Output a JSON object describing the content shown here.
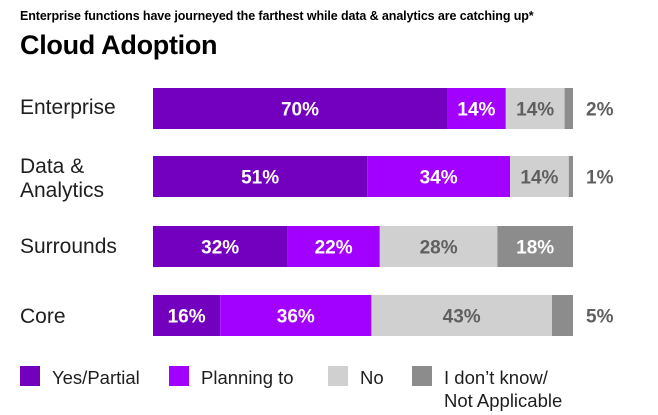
{
  "subtitle": "Enterprise functions have journeyed the farthest while data & analytics are catching up*",
  "title": "Cloud Adoption",
  "chart_data": {
    "type": "bar",
    "orientation": "horizontal",
    "stacked": true,
    "title": "Cloud Adoption",
    "subtitle": "Enterprise functions have journeyed the farthest while data & analytics are catching up*",
    "categories": [
      "Enterprise",
      "Data & Analytics",
      "Surrounds",
      "Core"
    ],
    "category_lines": [
      [
        "Enterprise"
      ],
      [
        "Data &",
        "Analytics"
      ],
      [
        "Surrounds"
      ],
      [
        "Core"
      ]
    ],
    "series": [
      {
        "name": "Yes/Partial",
        "color": "#7400bf",
        "label_color": "#ffffff",
        "values": [
          70,
          51,
          32,
          16
        ],
        "labels": [
          "70%",
          "51%",
          "32%",
          "16%"
        ]
      },
      {
        "name": "Planning to",
        "color": "#a200ff",
        "label_color": "#ffffff",
        "values": [
          14,
          34,
          22,
          36
        ],
        "labels": [
          "14%",
          "34%",
          "22%",
          "36%"
        ]
      },
      {
        "name": "No",
        "color": "#d0d0d0",
        "label_color": "#5f5f5f",
        "values": [
          14,
          14,
          28,
          43
        ],
        "labels": [
          "14%",
          "14%",
          "28%",
          "43%"
        ]
      },
      {
        "name": "I don't know/ Not Applicable",
        "color": "#8c8c8c",
        "label_color": "#ffffff",
        "values": [
          2,
          1,
          18,
          5
        ],
        "labels": [
          "2%",
          "1%",
          "18%",
          "5%"
        ]
      }
    ],
    "outside_labels": [
      "2%",
      "1%",
      null,
      "5%"
    ],
    "outside_label_color": "#5f5f5f",
    "xlim": [
      0,
      100
    ],
    "grid": false,
    "legend_position": "bottom"
  },
  "legend": [
    {
      "label": "Yes/Partial",
      "color": "#7400bf"
    },
    {
      "label": "Planning to",
      "color": "#a200ff"
    },
    {
      "label": "No",
      "color": "#d0d0d0"
    },
    {
      "label_lines": [
        "I don’t know/",
        "Not Applicable"
      ],
      "color": "#8c8c8c"
    }
  ]
}
